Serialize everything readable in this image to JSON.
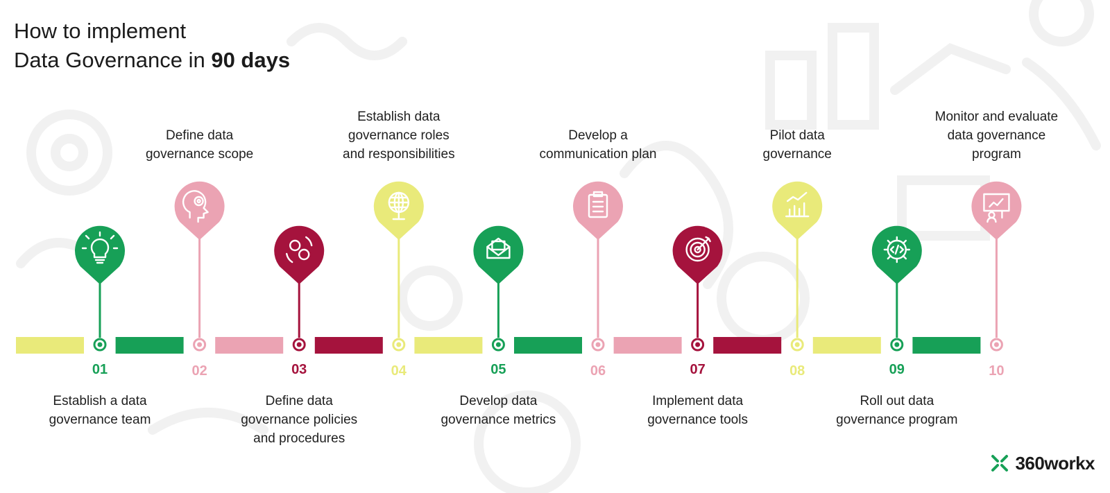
{
  "title": {
    "line1": "How to implement",
    "line2_prefix": "Data Governance in ",
    "line2_bold": "90 days"
  },
  "colors": {
    "yellow": "#e9ea7a",
    "green": "#17a057",
    "pink": "#eba3b3",
    "crimson": "#a5133d"
  },
  "steps": [
    {
      "number": "01",
      "label": [
        "Establish a data",
        "governance team"
      ],
      "color": "green",
      "pin": "high",
      "icon": "lightbulb-icon",
      "bar": "yellow"
    },
    {
      "number": "02",
      "label": [
        "Define data",
        "governance scope"
      ],
      "color": "pink",
      "pin": "low",
      "icon": "head-gear-icon",
      "bar": "green"
    },
    {
      "number": "03",
      "label": [
        "Define data",
        "governance policies",
        "and procedures"
      ],
      "color": "crimson",
      "pin": "high",
      "icon": "gears-cycle-icon",
      "bar": "pink"
    },
    {
      "number": "04",
      "label": [
        "Establish data",
        "governance roles",
        "and responsibilities"
      ],
      "color": "yellow",
      "pin": "low",
      "icon": "globe-icon",
      "bar": "crimson"
    },
    {
      "number": "05",
      "label": [
        "Develop data",
        "governance metrics"
      ],
      "color": "green",
      "pin": "high",
      "icon": "envelope-icon",
      "bar": "yellow"
    },
    {
      "number": "06",
      "label": [
        "Develop a",
        "communication plan"
      ],
      "color": "pink",
      "pin": "low",
      "icon": "clipboard-icon",
      "bar": "green"
    },
    {
      "number": "07",
      "label": [
        "Implement data",
        "governance tools"
      ],
      "color": "crimson",
      "pin": "high",
      "icon": "target-icon",
      "bar": "pink"
    },
    {
      "number": "08",
      "label": [
        "Pilot data",
        "governance"
      ],
      "color": "yellow",
      "pin": "low",
      "icon": "bar-chart-icon",
      "bar": "crimson"
    },
    {
      "number": "09",
      "label": [
        "Roll out data",
        "governance program"
      ],
      "color": "green",
      "pin": "high",
      "icon": "code-gear-icon",
      "bar": "yellow"
    },
    {
      "number": "10",
      "label": [
        "Monitor and evaluate",
        "data governance",
        "program"
      ],
      "color": "pink",
      "pin": "low",
      "icon": "presentation-icon",
      "bar": "green"
    }
  ],
  "brand": {
    "name": "360workx",
    "icon": "x-logo-icon",
    "color": "#17a057"
  }
}
